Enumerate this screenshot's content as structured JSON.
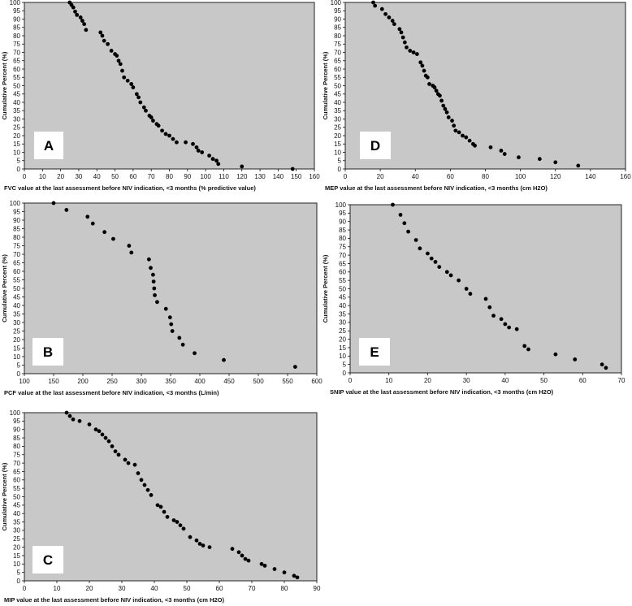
{
  "chart_data": [
    {
      "id": "A",
      "type": "scatter",
      "panel_letter": "A",
      "xlabel": "FVC value at the last assessment before NIV indication, <3 months (% predictive value)",
      "ylabel": "Cumulative Percent (%)",
      "xlim": [
        0,
        160
      ],
      "ylim": [
        0,
        100
      ],
      "xticks": [
        0,
        10,
        20,
        30,
        40,
        50,
        60,
        70,
        80,
        90,
        100,
        110,
        120,
        130,
        140,
        150,
        160
      ],
      "yticks": [
        0,
        5,
        10,
        15,
        20,
        25,
        30,
        35,
        40,
        45,
        50,
        55,
        60,
        65,
        70,
        75,
        80,
        85,
        90,
        95,
        100
      ],
      "points": [
        [
          25,
          100
        ],
        [
          26,
          98.5
        ],
        [
          27,
          97
        ],
        [
          28,
          94.5
        ],
        [
          29,
          92.5
        ],
        [
          31,
          91
        ],
        [
          32,
          89
        ],
        [
          33,
          87
        ],
        [
          34,
          83.5
        ],
        [
          42,
          82
        ],
        [
          43,
          80
        ],
        [
          44,
          77
        ],
        [
          46,
          75
        ],
        [
          48,
          71
        ],
        [
          50,
          69
        ],
        [
          51,
          68
        ],
        [
          52,
          65
        ],
        [
          53,
          63
        ],
        [
          54,
          59
        ],
        [
          55,
          55
        ],
        [
          57,
          53
        ],
        [
          59,
          51
        ],
        [
          60,
          49
        ],
        [
          62,
          45
        ],
        [
          63,
          43
        ],
        [
          64,
          40
        ],
        [
          66,
          37
        ],
        [
          67,
          35
        ],
        [
          69,
          32
        ],
        [
          70,
          31
        ],
        [
          71,
          29
        ],
        [
          73,
          27
        ],
        [
          74,
          26
        ],
        [
          76,
          23
        ],
        [
          78,
          21
        ],
        [
          80,
          20
        ],
        [
          82,
          18
        ],
        [
          84,
          16
        ],
        [
          89,
          16
        ],
        [
          93,
          15
        ],
        [
          95,
          13
        ],
        [
          96,
          11
        ],
        [
          98,
          10
        ],
        [
          102,
          8
        ],
        [
          104,
          6
        ],
        [
          106,
          5
        ],
        [
          107,
          3
        ],
        [
          120,
          1.5
        ],
        [
          148,
          0
        ]
      ]
    },
    {
      "id": "B",
      "type": "scatter",
      "panel_letter": "B",
      "xlabel": "PCF value at the last assessment before NIV indication, <3 months (L/min)",
      "ylabel": "Cumulative Percent (%)",
      "xlim": [
        100,
        600
      ],
      "ylim": [
        0,
        100
      ],
      "xticks": [
        100,
        150,
        200,
        250,
        300,
        350,
        400,
        450,
        500,
        550,
        600
      ],
      "yticks": [
        0,
        5,
        10,
        15,
        20,
        25,
        30,
        35,
        40,
        45,
        50,
        55,
        60,
        65,
        70,
        75,
        80,
        85,
        90,
        95,
        100
      ],
      "points": [
        [
          150,
          100
        ],
        [
          172,
          96
        ],
        [
          208,
          92
        ],
        [
          217,
          88
        ],
        [
          237,
          83
        ],
        [
          252,
          79
        ],
        [
          279,
          75
        ],
        [
          283,
          71
        ],
        [
          313,
          67
        ],
        [
          316,
          62
        ],
        [
          320,
          58
        ],
        [
          321,
          54
        ],
        [
          322,
          50
        ],
        [
          323,
          46
        ],
        [
          327,
          42
        ],
        [
          342,
          38
        ],
        [
          349,
          33
        ],
        [
          351,
          29
        ],
        [
          353,
          25
        ],
        [
          365,
          21
        ],
        [
          371,
          17
        ],
        [
          391,
          12
        ],
        [
          441,
          8
        ],
        [
          563,
          4
        ]
      ]
    },
    {
      "id": "C",
      "type": "scatter",
      "panel_letter": "C",
      "xlabel": "MIP value at the last assessment before NIV indication, <3 months (cm H2O)",
      "ylabel": "Cumulative Percent (%)",
      "xlim": [
        0,
        90
      ],
      "ylim": [
        0,
        100
      ],
      "xticks": [
        0,
        10,
        20,
        30,
        40,
        50,
        60,
        70,
        80,
        90
      ],
      "yticks": [
        0,
        5,
        10,
        15,
        20,
        25,
        30,
        35,
        40,
        45,
        50,
        55,
        60,
        65,
        70,
        75,
        80,
        85,
        90,
        95,
        100
      ],
      "points": [
        [
          13,
          100
        ],
        [
          14,
          98
        ],
        [
          15,
          96
        ],
        [
          17,
          95
        ],
        [
          20,
          93
        ],
        [
          22,
          90
        ],
        [
          23,
          89
        ],
        [
          24,
          87
        ],
        [
          25,
          85
        ],
        [
          26,
          83
        ],
        [
          27,
          80
        ],
        [
          28,
          77
        ],
        [
          29,
          75
        ],
        [
          31,
          72
        ],
        [
          32,
          70
        ],
        [
          34,
          69
        ],
        [
          35,
          64
        ],
        [
          36,
          60
        ],
        [
          37,
          57
        ],
        [
          38,
          54
        ],
        [
          39,
          51
        ],
        [
          41,
          45
        ],
        [
          42,
          44
        ],
        [
          43,
          41
        ],
        [
          44,
          38
        ],
        [
          46,
          36
        ],
        [
          47,
          35
        ],
        [
          48,
          33
        ],
        [
          49,
          31
        ],
        [
          51,
          26
        ],
        [
          53,
          24
        ],
        [
          54,
          22
        ],
        [
          55,
          21
        ],
        [
          57,
          20
        ],
        [
          64,
          19
        ],
        [
          66,
          17
        ],
        [
          67,
          15
        ],
        [
          68,
          13
        ],
        [
          69,
          12
        ],
        [
          73,
          10
        ],
        [
          74,
          9
        ],
        [
          77,
          7
        ],
        [
          80,
          5
        ],
        [
          83,
          3
        ],
        [
          84,
          2
        ]
      ]
    },
    {
      "id": "D",
      "type": "scatter",
      "panel_letter": "D",
      "xlabel": "MEP value at the last assessment before NIV indication, <3 months (cm H2O)",
      "ylabel": "Cumulative Percent (%)",
      "xlim": [
        0,
        160
      ],
      "ylim": [
        0,
        100
      ],
      "xticks": [
        0,
        20,
        40,
        60,
        80,
        100,
        120,
        140,
        160
      ],
      "yticks": [
        0,
        5,
        10,
        15,
        20,
        25,
        30,
        35,
        40,
        45,
        50,
        55,
        60,
        65,
        70,
        75,
        80,
        85,
        90,
        95,
        100
      ],
      "points": [
        [
          16,
          100
        ],
        [
          17,
          98
        ],
        [
          21,
          96
        ],
        [
          23,
          93
        ],
        [
          25,
          91
        ],
        [
          27,
          89
        ],
        [
          28,
          87
        ],
        [
          31,
          84
        ],
        [
          32,
          82
        ],
        [
          33,
          79
        ],
        [
          34,
          76
        ],
        [
          35,
          73
        ],
        [
          37,
          71
        ],
        [
          39,
          70
        ],
        [
          41,
          69
        ],
        [
          43,
          64
        ],
        [
          44,
          62
        ],
        [
          45,
          59
        ],
        [
          46,
          56
        ],
        [
          47,
          55
        ],
        [
          48,
          51
        ],
        [
          50,
          50
        ],
        [
          51,
          49
        ],
        [
          52,
          47
        ],
        [
          53,
          45
        ],
        [
          54,
          44
        ],
        [
          55,
          41
        ],
        [
          56,
          38
        ],
        [
          57,
          36
        ],
        [
          58,
          34
        ],
        [
          59,
          31
        ],
        [
          61,
          29
        ],
        [
          62,
          26
        ],
        [
          63,
          23
        ],
        [
          65,
          22
        ],
        [
          67,
          20
        ],
        [
          69,
          19
        ],
        [
          71,
          17
        ],
        [
          73,
          15
        ],
        [
          74,
          14
        ],
        [
          83,
          13
        ],
        [
          89,
          11
        ],
        [
          91,
          9
        ],
        [
          99,
          7
        ],
        [
          111,
          6
        ],
        [
          120,
          4
        ],
        [
          133,
          2
        ]
      ]
    },
    {
      "id": "E",
      "type": "scatter",
      "panel_letter": "E",
      "xlabel": "SNIP value at the last assessment before NIV indication, <3 months (cm H2O)",
      "ylabel": "Cumulative Percent (%)",
      "xlim": [
        0,
        70
      ],
      "ylim": [
        0,
        100
      ],
      "xticks": [
        0,
        10,
        20,
        30,
        40,
        50,
        60,
        70
      ],
      "yticks": [
        0,
        5,
        10,
        15,
        20,
        25,
        30,
        35,
        40,
        45,
        50,
        55,
        60,
        65,
        70,
        75,
        80,
        85,
        90,
        95,
        100
      ],
      "points": [
        [
          11,
          100
        ],
        [
          13,
          94
        ],
        [
          14,
          89
        ],
        [
          15,
          84
        ],
        [
          17,
          79
        ],
        [
          18,
          74
        ],
        [
          20,
          71
        ],
        [
          21,
          68
        ],
        [
          22,
          66
        ],
        [
          23,
          63
        ],
        [
          25,
          60
        ],
        [
          26,
          58
        ],
        [
          28,
          55
        ],
        [
          30,
          50
        ],
        [
          31,
          47
        ],
        [
          35,
          44
        ],
        [
          36,
          39
        ],
        [
          37,
          34
        ],
        [
          39,
          32
        ],
        [
          40,
          29
        ],
        [
          41,
          27
        ],
        [
          43,
          26
        ],
        [
          45,
          16
        ],
        [
          46,
          14
        ],
        [
          53,
          11
        ],
        [
          58,
          8
        ],
        [
          65,
          5
        ],
        [
          66,
          3
        ]
      ]
    }
  ]
}
